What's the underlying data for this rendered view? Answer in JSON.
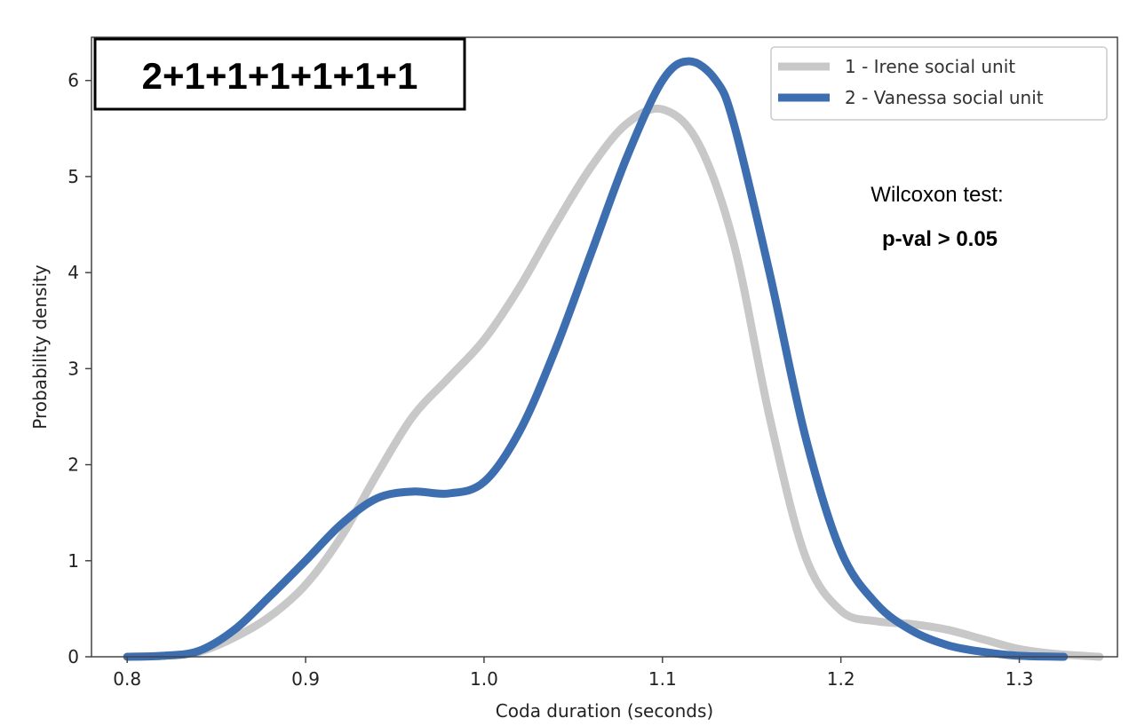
{
  "chart_data": {
    "type": "line",
    "title": "",
    "xlabel": "Coda duration (seconds)",
    "ylabel": "Probability density",
    "xlim": [
      0.78,
      1.355
    ],
    "ylim": [
      0,
      6.45
    ],
    "xticks": [
      0.8,
      0.9,
      1.0,
      1.1,
      1.2,
      1.3
    ],
    "xtick_labels": [
      "0.8",
      "0.9",
      "1.0",
      "1.1",
      "1.2",
      "1.3"
    ],
    "yticks": [
      0,
      1,
      2,
      3,
      4,
      5,
      6
    ],
    "ytick_labels": [
      "0",
      "1",
      "2",
      "3",
      "4",
      "5",
      "6"
    ],
    "grid": false,
    "legend_position": "top-right",
    "annotation_box": "2+1+1+1+1+1+1",
    "annotation_lines": [
      "Wilcoxon test:",
      "p-val > 0.05"
    ],
    "series": [
      {
        "name": "1 - Irene social unit",
        "color": "#c8c8c8",
        "x": [
          0.8,
          0.82,
          0.84,
          0.86,
          0.88,
          0.9,
          0.92,
          0.94,
          0.96,
          0.98,
          1.0,
          1.02,
          1.04,
          1.06,
          1.08,
          1.1,
          1.12,
          1.14,
          1.16,
          1.18,
          1.2,
          1.22,
          1.24,
          1.26,
          1.28,
          1.3,
          1.32,
          1.345
        ],
        "y": [
          0.0,
          0.01,
          0.05,
          0.2,
          0.42,
          0.75,
          1.25,
          1.9,
          2.5,
          2.9,
          3.3,
          3.85,
          4.5,
          5.1,
          5.55,
          5.7,
          5.35,
          4.3,
          2.5,
          1.05,
          0.48,
          0.37,
          0.34,
          0.28,
          0.18,
          0.08,
          0.03,
          0.0
        ]
      },
      {
        "name": "2 - Vanessa social unit",
        "color": "#3d6fb0",
        "x": [
          0.8,
          0.82,
          0.84,
          0.86,
          0.88,
          0.9,
          0.92,
          0.94,
          0.96,
          0.98,
          1.0,
          1.02,
          1.04,
          1.06,
          1.08,
          1.1,
          1.115,
          1.13,
          1.14,
          1.16,
          1.18,
          1.2,
          1.22,
          1.24,
          1.26,
          1.28,
          1.3,
          1.325
        ],
        "y": [
          0.0,
          0.01,
          0.06,
          0.28,
          0.63,
          1.0,
          1.38,
          1.65,
          1.72,
          1.7,
          1.82,
          2.35,
          3.2,
          4.2,
          5.2,
          6.0,
          6.2,
          6.0,
          5.55,
          4.0,
          2.3,
          1.1,
          0.55,
          0.27,
          0.12,
          0.05,
          0.01,
          0.0
        ]
      }
    ]
  }
}
